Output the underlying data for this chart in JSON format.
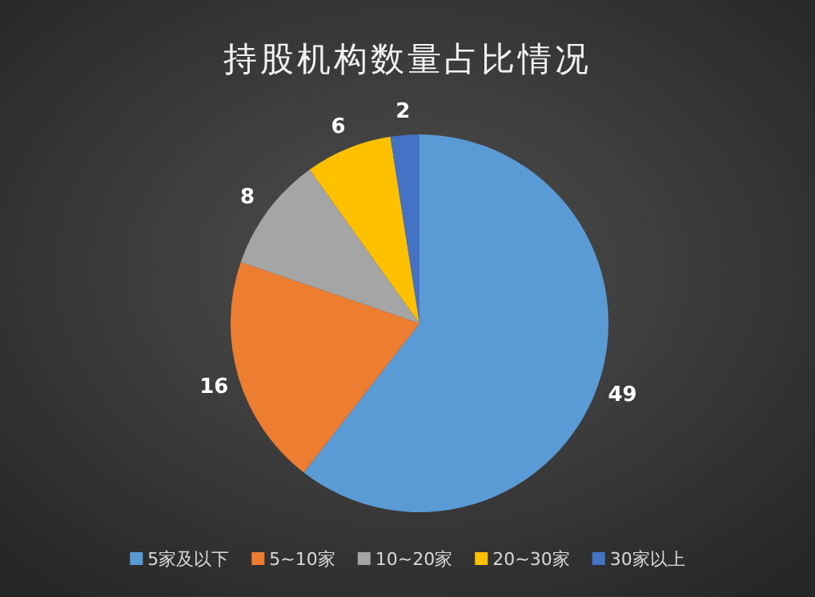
{
  "chart_data": {
    "type": "pie",
    "title": "持股机构数量占比情况",
    "categories": [
      "5家及以下",
      "5~10家",
      "10~20家",
      "20~30家",
      "30家以上"
    ],
    "values": [
      49,
      16,
      8,
      6,
      2
    ],
    "colors": [
      "#5b9bd5",
      "#ed7d31",
      "#a5a5a5",
      "#ffc000",
      "#4472c4"
    ],
    "data_labels": true,
    "legend": "bottom"
  }
}
